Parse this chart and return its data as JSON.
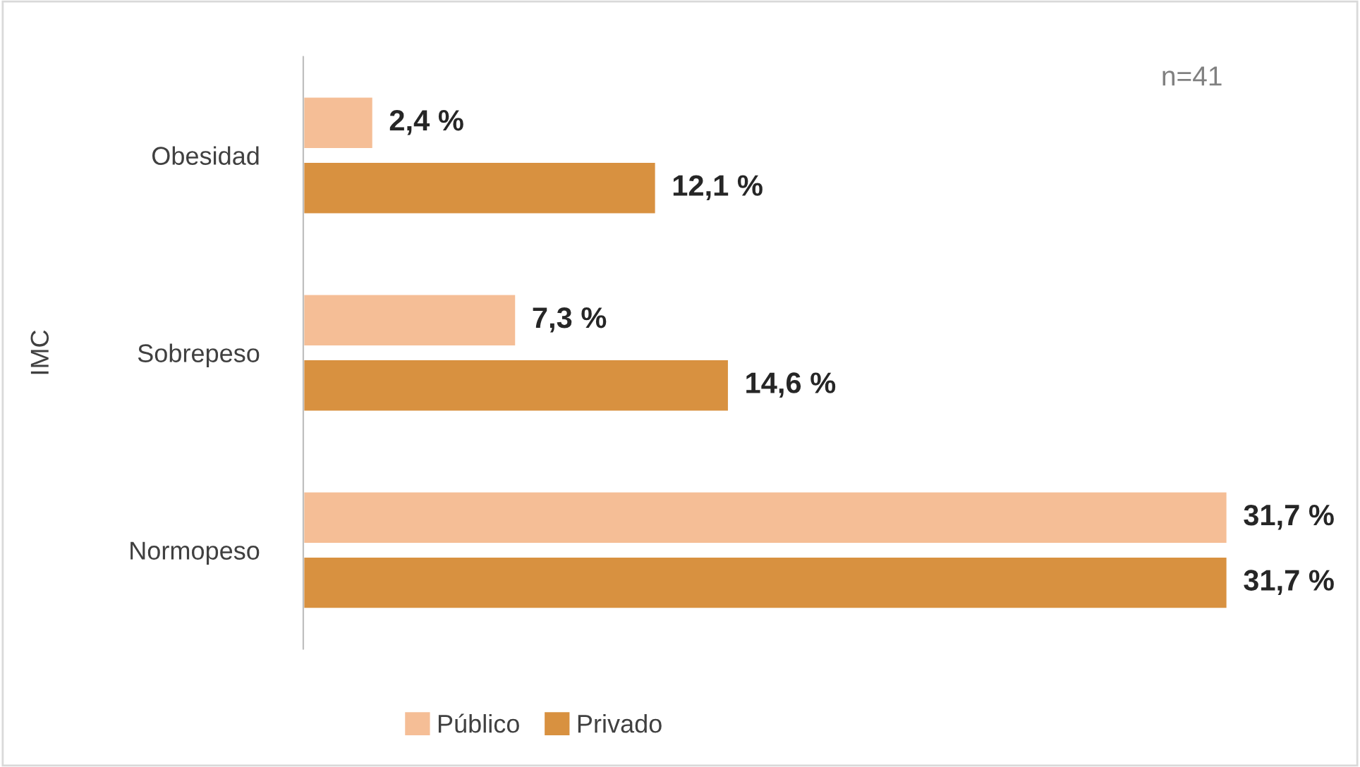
{
  "chart_data": {
    "type": "bar",
    "orientation": "horizontal",
    "ylabel": "IMC",
    "categories": [
      "Obesidad",
      "Sobrepeso",
      "Normopeso"
    ],
    "series": [
      {
        "name": "Público",
        "color": "#f5be96",
        "values": [
          2.4,
          7.3,
          31.7
        ],
        "value_labels": [
          "2,4 %",
          "7,3 %",
          "31,7 %"
        ]
      },
      {
        "name": "Privado",
        "color": "#d89140",
        "values": [
          12.1,
          14.6,
          31.7
        ],
        "value_labels": [
          "12,1 %",
          "14,6 %",
          "31,7 %"
        ]
      }
    ],
    "xlim": [
      0,
      31.7
    ],
    "tick_labels": "y",
    "grid": false,
    "legend": "bottom",
    "annotations": [
      "n=41"
    ]
  }
}
